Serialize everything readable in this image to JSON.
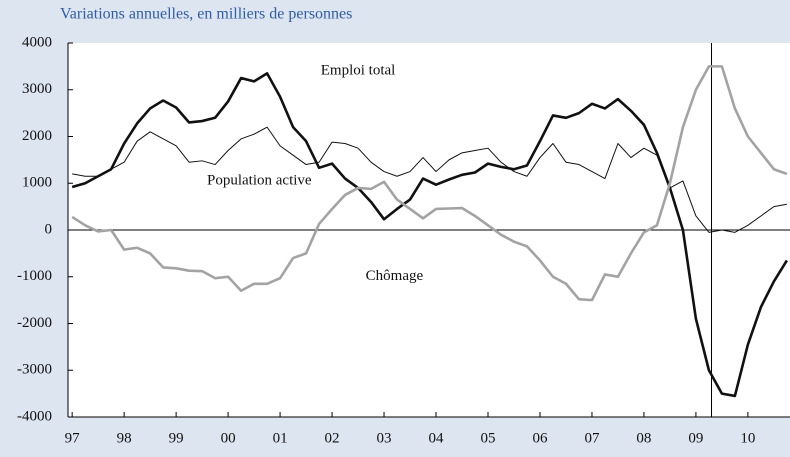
{
  "chart_data": {
    "type": "line",
    "title": "Variations annuelles, en milliers de personnes",
    "x": [
      1997,
      1997.25,
      1997.5,
      1997.75,
      1998,
      1998.25,
      1998.5,
      1998.75,
      1999,
      1999.25,
      1999.5,
      1999.75,
      2000,
      2000.25,
      2000.5,
      2000.75,
      2001,
      2001.25,
      2001.5,
      2001.75,
      2002,
      2002.25,
      2002.5,
      2002.75,
      2003,
      2003.25,
      2003.5,
      2003.75,
      2004,
      2004.25,
      2004.5,
      2004.75,
      2005,
      2005.25,
      2005.5,
      2005.75,
      2006,
      2006.25,
      2006.5,
      2006.75,
      2007,
      2007.25,
      2007.5,
      2007.75,
      2008,
      2008.25,
      2008.5,
      2008.75,
      2009,
      2009.25,
      2009.5,
      2009.75,
      2010,
      2010.25,
      2010.5,
      2010.75
    ],
    "series": [
      {
        "name": "Emploi total",
        "color": "#111111",
        "width": 2.6,
        "values": [
          920,
          1000,
          1150,
          1300,
          1850,
          2280,
          2600,
          2770,
          2620,
          2300,
          2330,
          2400,
          2750,
          3250,
          3180,
          3350,
          2850,
          2200,
          1900,
          1330,
          1420,
          1100,
          900,
          600,
          230,
          450,
          650,
          1100,
          970,
          1080,
          1180,
          1230,
          1420,
          1350,
          1300,
          1380,
          1900,
          2450,
          2400,
          2500,
          2700,
          2600,
          2800,
          2550,
          2250,
          1650,
          900,
          0,
          -1900,
          -3000,
          -3500,
          -3550,
          -2450,
          -1650,
          -1100,
          -650
        ]
      },
      {
        "name": "Population active",
        "color": "#111111",
        "width": 1,
        "values": [
          1200,
          1150,
          1150,
          1300,
          1450,
          1900,
          2100,
          1950,
          1800,
          1450,
          1480,
          1400,
          1700,
          1950,
          2050,
          2200,
          1800,
          1600,
          1400,
          1450,
          1880,
          1850,
          1750,
          1450,
          1250,
          1150,
          1250,
          1550,
          1250,
          1500,
          1650,
          1700,
          1750,
          1450,
          1250,
          1150,
          1550,
          1850,
          1450,
          1400,
          1250,
          1100,
          1850,
          1550,
          1750,
          1600,
          900,
          1050,
          300,
          -50,
          0,
          -50,
          100,
          300,
          500,
          550
        ]
      },
      {
        "name": "Chômage",
        "color": "#a3a3a3",
        "width": 2.6,
        "values": [
          280,
          100,
          -30,
          0,
          -420,
          -380,
          -500,
          -800,
          -820,
          -870,
          -880,
          -1030,
          -1000,
          -1300,
          -1150,
          -1150,
          -1030,
          -600,
          -500,
          130,
          450,
          750,
          900,
          880,
          1030,
          650,
          450,
          250,
          450,
          460,
          470,
          300,
          100,
          -100,
          -250,
          -350,
          -650,
          -1000,
          -1150,
          -1480,
          -1500,
          -950,
          -1000,
          -500,
          -50,
          100,
          1000,
          2200,
          3000,
          3500,
          3500,
          2600,
          2000,
          1650,
          1300,
          1200
        ]
      }
    ],
    "xlim": [
      1996.92,
      2010.81
    ],
    "xticks": [
      {
        "value": 1997,
        "label": "97"
      },
      {
        "value": 1998,
        "label": "98"
      },
      {
        "value": 1999,
        "label": "99"
      },
      {
        "value": 2000,
        "label": "00"
      },
      {
        "value": 2001,
        "label": "01"
      },
      {
        "value": 2002,
        "label": "02"
      },
      {
        "value": 2003,
        "label": "03"
      },
      {
        "value": 2004,
        "label": "04"
      },
      {
        "value": 2005,
        "label": "05"
      },
      {
        "value": 2006,
        "label": "06"
      },
      {
        "value": 2007,
        "label": "07"
      },
      {
        "value": 2008,
        "label": "08"
      },
      {
        "value": 2009,
        "label": "09"
      },
      {
        "value": 2010,
        "label": "10"
      }
    ],
    "ylim": [
      -4000,
      4000
    ],
    "yticks": [
      -4000,
      -3000,
      -2000,
      -1000,
      0,
      1000,
      2000,
      3000,
      4000
    ],
    "vline": 2009.3,
    "zero_line": true,
    "series_labels": [
      {
        "series": 0,
        "x": 2002.5,
        "y": 3400
      },
      {
        "series": 1,
        "x": 2000.6,
        "y": 1050
      },
      {
        "series": 2,
        "x": 2003.2,
        "y": -1000
      }
    ]
  }
}
